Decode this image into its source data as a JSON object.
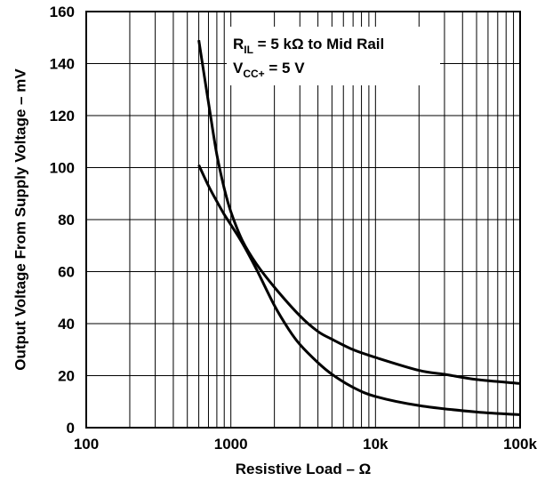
{
  "chart_data": {
    "type": "line",
    "x_scale": "log",
    "xlim": [
      100,
      100000
    ],
    "ylim": [
      0,
      160
    ],
    "grid": true,
    "xlabel": "Resistive Load – Ω",
    "ylabel": "Output Voltage From Supply Voltage – mV",
    "x_tick_labels": [
      {
        "value": 100,
        "label": "100"
      },
      {
        "value": 1000,
        "label": "1000"
      },
      {
        "value": 10000,
        "label": "10k"
      },
      {
        "value": 100000,
        "label": "100k"
      }
    ],
    "y_tick_labels": [
      {
        "value": 0,
        "label": "0"
      },
      {
        "value": 20,
        "label": "20"
      },
      {
        "value": 40,
        "label": "40"
      },
      {
        "value": 60,
        "label": "60"
      },
      {
        "value": 80,
        "label": "80"
      },
      {
        "value": 100,
        "label": "100"
      },
      {
        "value": 120,
        "label": "120"
      },
      {
        "value": 140,
        "label": "140"
      },
      {
        "value": 160,
        "label": "160"
      }
    ],
    "annotation": {
      "line1_main": "R",
      "line1_sub": "IL",
      "line1_rest": " = 5 kΩ to Mid Rail",
      "line2_main": "V",
      "line2_sub": "CC+",
      "line2_rest": " = 5 V"
    },
    "series": [
      {
        "points": [
          [
            600,
            149
          ],
          [
            700,
            125
          ],
          [
            800,
            105
          ],
          [
            900,
            92
          ],
          [
            1000,
            83
          ],
          [
            1200,
            72
          ],
          [
            1500,
            63
          ],
          [
            2000,
            54
          ],
          [
            3000,
            43
          ],
          [
            4000,
            37
          ],
          [
            5000,
            34
          ],
          [
            7000,
            30
          ],
          [
            10000,
            27
          ],
          [
            20000,
            22
          ],
          [
            30000,
            20.5
          ],
          [
            50000,
            18.5
          ],
          [
            100000,
            17
          ]
        ]
      },
      {
        "points": [
          [
            600,
            101
          ],
          [
            700,
            93
          ],
          [
            800,
            87
          ],
          [
            900,
            82
          ],
          [
            1000,
            78
          ],
          [
            1200,
            71
          ],
          [
            1500,
            61
          ],
          [
            2000,
            47
          ],
          [
            2500,
            38
          ],
          [
            3000,
            32
          ],
          [
            4000,
            25
          ],
          [
            5000,
            20.5
          ],
          [
            7000,
            15.5
          ],
          [
            10000,
            12
          ],
          [
            20000,
            8.5
          ],
          [
            50000,
            6
          ],
          [
            100000,
            5
          ]
        ]
      }
    ]
  }
}
